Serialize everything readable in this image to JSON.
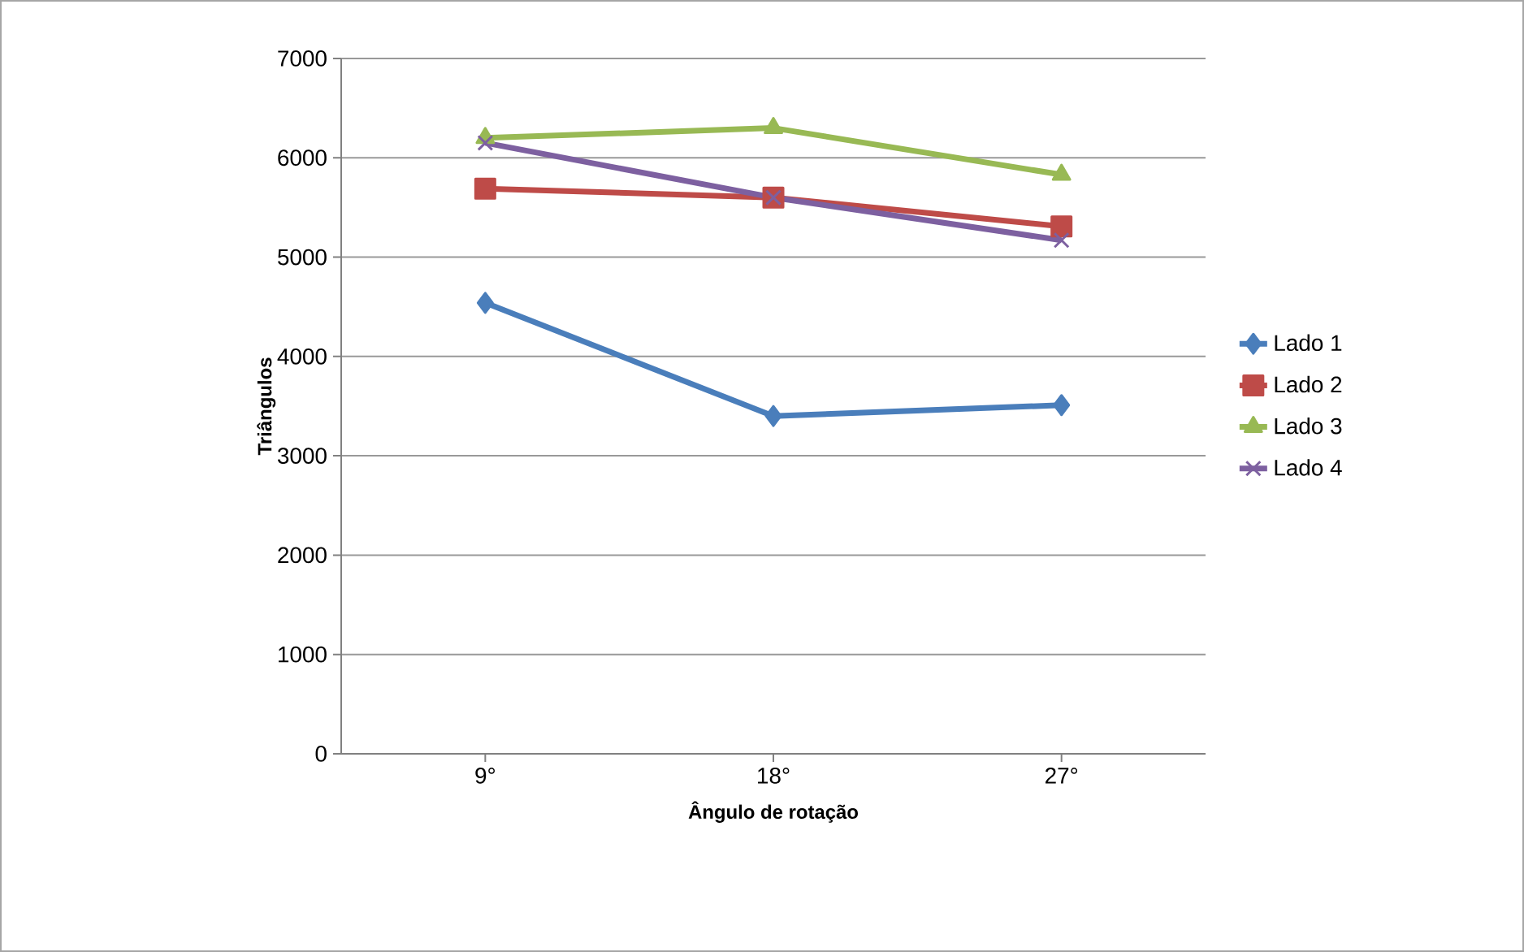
{
  "chart_data": {
    "type": "line",
    "xlabel": "Ângulo de rotação",
    "ylabel": "Triângulos",
    "categories": [
      "9°",
      "18°",
      "27°"
    ],
    "series": [
      {
        "name": "Lado 1",
        "color": "#4a7ebb",
        "marker": "diamond",
        "values": [
          4540,
          3400,
          3510
        ]
      },
      {
        "name": "Lado 2",
        "color": "#be4b48",
        "marker": "square",
        "values": [
          5690,
          5600,
          5310
        ]
      },
      {
        "name": "Lado 3",
        "color": "#98b954",
        "marker": "triangle",
        "values": [
          6200,
          6300,
          5830
        ]
      },
      {
        "name": "Lado 4",
        "color": "#7d60a0",
        "marker": "cross",
        "values": [
          6150,
          5600,
          5170
        ]
      }
    ],
    "ylim": [
      0,
      7000
    ],
    "yticks": [
      0,
      1000,
      2000,
      3000,
      4000,
      5000,
      6000,
      7000
    ],
    "grid": "y",
    "legend": "right"
  }
}
